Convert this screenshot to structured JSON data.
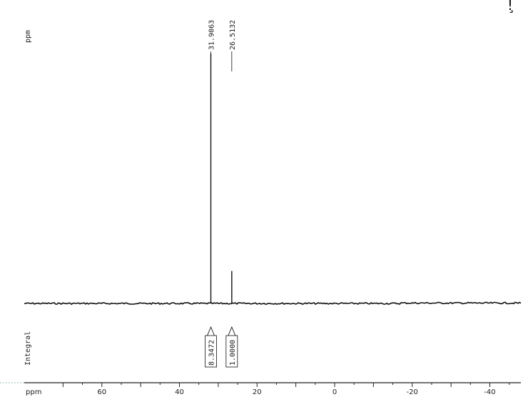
{
  "chart_data": {
    "type": "line",
    "xlabel": "ppm",
    "top_axis_label": "ppm",
    "integral_label": "Integral",
    "xlim": [
      -48,
      80
    ],
    "x_reversed": true,
    "ticks": [
      {
        "value": 60,
        "label": "60"
      },
      {
        "value": 40,
        "label": "40"
      },
      {
        "value": 20,
        "label": "20"
      },
      {
        "value": 0,
        "label": "0"
      },
      {
        "value": -20,
        "label": "-20"
      },
      {
        "value": -40,
        "label": "-40"
      }
    ],
    "peaks": [
      {
        "ppm": 31.9063,
        "label": "31.9063",
        "relative_height": 1.0
      },
      {
        "ppm": 26.5132,
        "label": "26.5132",
        "relative_height": 0.13
      }
    ],
    "integrals": [
      {
        "ppm": 31.9063,
        "label": "8.3472"
      },
      {
        "ppm": 26.5132,
        "label": "1.0000"
      }
    ],
    "corner_mark": "ǃ ̧"
  }
}
